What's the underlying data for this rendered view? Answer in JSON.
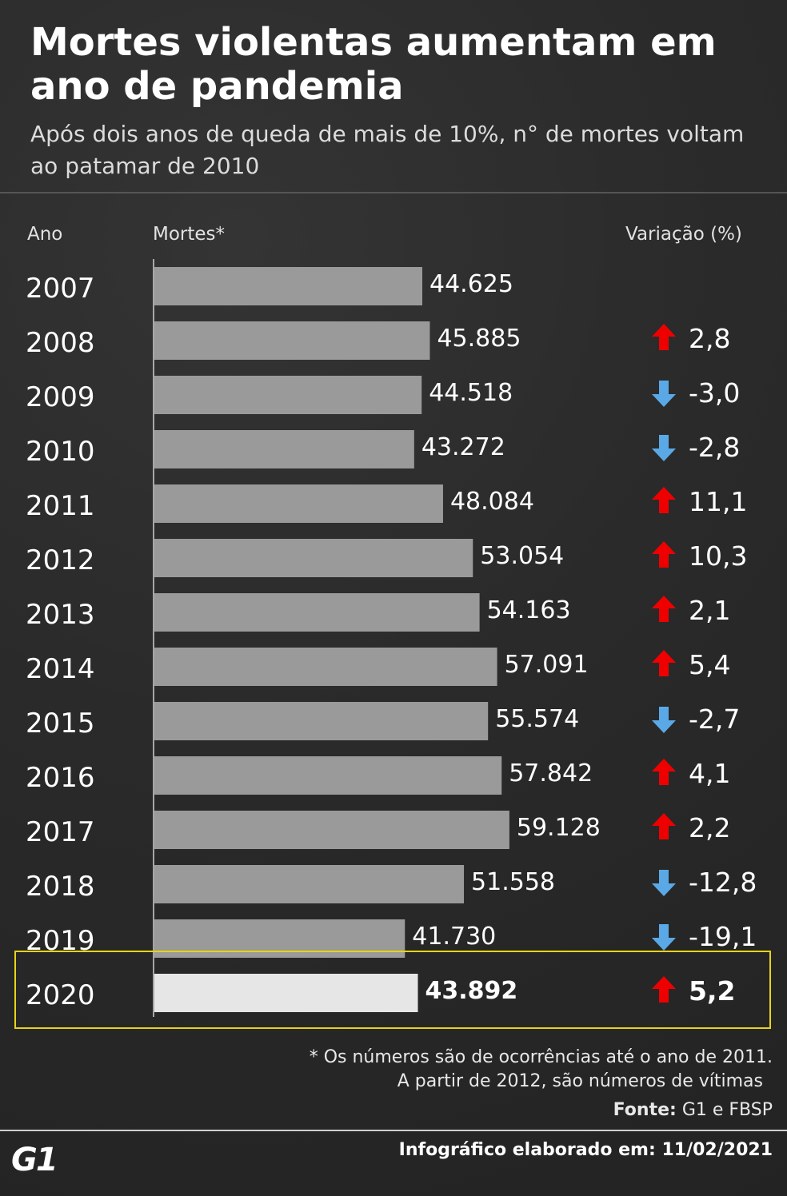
{
  "header": {
    "title": "Mortes violentas aumentam em ano de pandemia",
    "subtitle": "Após dois anos de queda de mais de 10%, n° de mortes voltam ao patamar de 2010"
  },
  "columns": {
    "year": "Ano",
    "deaths": "Mortes*",
    "variation": "Variação (%)"
  },
  "chart_data": {
    "type": "bar",
    "orientation": "horizontal",
    "categories": [
      "2007",
      "2008",
      "2009",
      "2010",
      "2011",
      "2012",
      "2013",
      "2014",
      "2015",
      "2016",
      "2017",
      "2018",
      "2019",
      "2020"
    ],
    "series": [
      {
        "values": [
          44625,
          45885,
          44518,
          43272,
          48084,
          53054,
          54163,
          57091,
          55574,
          57842,
          59128,
          51558,
          41730,
          43892
        ],
        "labels": [
          "44.625",
          "45.885",
          "44.518",
          "43.272",
          "48.084",
          "53.054",
          "54.163",
          "57.091",
          "55.574",
          "57.842",
          "59.128",
          "51.558",
          "41.730",
          "43.892"
        ]
      }
    ],
    "variation": [
      null,
      2.8,
      -3.0,
      -2.8,
      11.1,
      10.3,
      2.1,
      5.4,
      -2.7,
      4.1,
      2.2,
      -12.8,
      -19.1,
      5.2
    ],
    "variation_labels": [
      "",
      "2,8",
      "-3,0",
      "-2,8",
      "11,1",
      "10,3",
      "2,1",
      "5,4",
      "-2,7",
      "4,1",
      "2,2",
      "-12,8",
      "-19,1",
      "5,2"
    ],
    "highlight": "2020",
    "colors": {
      "bar": "#9a9a9a",
      "bar_highlight": "#e6e6e6",
      "up_arrow": "#ee0000",
      "down_arrow": "#5aa9e6",
      "highlight_border": "#e8d21a"
    }
  },
  "footer": {
    "note_line1": "* Os números são de ocorrências até o ano de 2011.",
    "note_line2": "A partir de 2012, são números de vítimas",
    "source_label": "Fonte:",
    "source_value": "G1 e FBSP",
    "logo": "G1",
    "made_label": "Infográfico elaborado em:",
    "made_date": "11/02/2021"
  }
}
